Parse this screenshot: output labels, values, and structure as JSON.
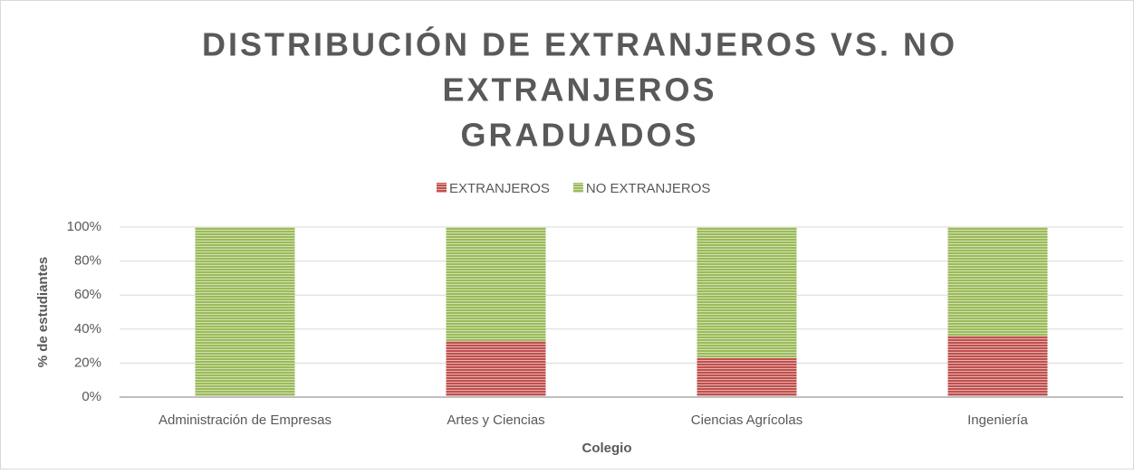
{
  "chart_data": {
    "type": "stacked_bar",
    "title": [
      "DISTRIBUCIÓN DE EXTRANJEROS VS. NO",
      "EXTRANJEROS",
      "GRADUADOS"
    ],
    "x_label": "Colegio",
    "y_label": "% de estudiantes",
    "categories": [
      "Administración de Empresas",
      "Artes y Ciencias",
      "Ciencias Agrícolas",
      "Ingeniería"
    ],
    "series": [
      {
        "name": "EXTRANJEROS",
        "color": "#c0504d",
        "values": [
          0,
          33,
          23,
          36
        ]
      },
      {
        "name": "NO EXTRANJEROS",
        "color": "#9bbb59",
        "values": [
          100,
          67,
          77,
          64
        ]
      }
    ],
    "ylim": [
      0,
      100
    ],
    "yticks": [
      {
        "value": 0,
        "label": "0%"
      },
      {
        "value": 20,
        "label": "20%"
      },
      {
        "value": 40,
        "label": "40%"
      },
      {
        "value": 60,
        "label": "60%"
      },
      {
        "value": 80,
        "label": "80%"
      },
      {
        "value": 100,
        "label": "100%"
      }
    ],
    "grid": true,
    "legend": "top"
  }
}
